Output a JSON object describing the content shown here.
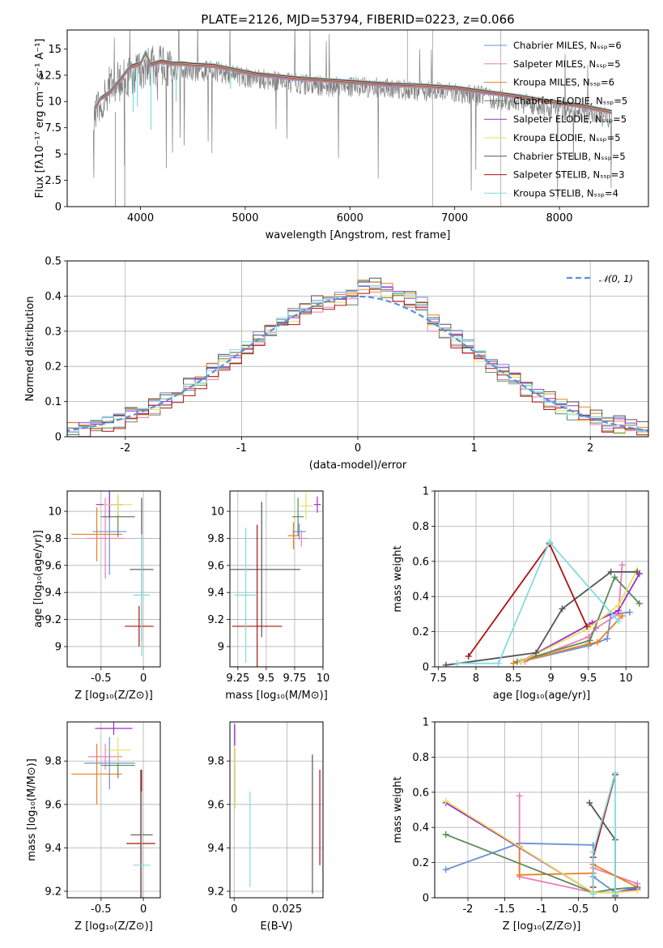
{
  "chart_data": [
    {
      "type": "line",
      "id": "spectrum",
      "title": "PLATE=2126, MJD=53794, FIBERID=0223, z=0.066",
      "xlabel": "wavelength [Angstrom, rest frame]",
      "ylabel": "Flux [fλ10⁻¹⁷ erg cm⁻² s⁻¹ A⁻¹]",
      "xlim": [
        3300,
        8850
      ],
      "ylim": [
        0,
        16.8
      ],
      "xticks": [
        4000,
        5000,
        6000,
        7000,
        8000
      ],
      "yticks": [
        0.0,
        2.5,
        5.0,
        7.5,
        10.0,
        12.5,
        15.0
      ],
      "grid": false,
      "legend_position": "right",
      "data_color": "#808080",
      "data_envelope": {
        "x": [
          3580,
          3700,
          3800,
          3900,
          4000,
          4100,
          4200,
          4300,
          4500,
          4700,
          4900,
          5100,
          5300,
          5500,
          5800,
          6100,
          6400,
          6700,
          7000,
          7300,
          7600,
          7900,
          8200,
          8500
        ],
        "y": [
          9.5,
          12.0,
          12.5,
          13.0,
          13.5,
          14.0,
          14.0,
          13.5,
          13.5,
          13.5,
          13.0,
          12.8,
          12.5,
          12.3,
          12.0,
          12.0,
          11.8,
          11.6,
          11.5,
          11.0,
          10.5,
          10.0,
          9.5,
          9.0
        ]
      },
      "model_color": "#80dce0",
      "model": {
        "x": [
          3560,
          3620,
          3700,
          3800,
          3900,
          4000,
          4050,
          4100,
          4200,
          4300,
          4400,
          4500,
          4700,
          4900,
          5100,
          5300,
          5500,
          5800,
          6100,
          6400,
          6700,
          7000,
          7300,
          7600,
          7900,
          8200,
          8500
        ],
        "y": [
          9.3,
          10.3,
          10.8,
          12.0,
          13.3,
          13.6,
          14.7,
          13.5,
          13.8,
          13.6,
          13.6,
          13.5,
          13.4,
          13.0,
          12.6,
          12.4,
          12.2,
          12.0,
          11.8,
          11.6,
          11.5,
          11.3,
          10.9,
          10.5,
          10.0,
          9.6,
          9.0
        ]
      },
      "legend": [
        {
          "label": "Chabrier MILES, Nₛₛₚ=6",
          "color": "#6b8fd6"
        },
        {
          "label": "Salpeter MILES, Nₛₛₚ=5",
          "color": "#e87fb8"
        },
        {
          "label": "Kroupa MILES, Nₛₛₚ=6",
          "color": "#e8801f"
        },
        {
          "label": "Chabrier ELODIE, Nₛₛₚ=5",
          "color": "#5a8a5a"
        },
        {
          "label": "Salpeter ELODIE, Nₛₛₚ=5",
          "color": "#9b30c8"
        },
        {
          "label": "Kroupa ELODIE, Nₛₛₚ=5",
          "color": "#e8e060"
        },
        {
          "label": "Chabrier STELIB, Nₛₛₚ=5",
          "color": "#555555"
        },
        {
          "label": "Salpeter STELIB, Nₛₛₚ=3",
          "color": "#b01010"
        },
        {
          "label": "Kroupa STELIB, Nₛₛₚ=4",
          "color": "#80dce0"
        }
      ]
    },
    {
      "type": "line",
      "id": "residuals",
      "xlabel": "(data-model)/error",
      "ylabel": "Normed distribution",
      "xlim": [
        -2.5,
        2.5
      ],
      "ylim": [
        0,
        0.5
      ],
      "xticks": [
        -2,
        -1,
        0,
        1,
        2
      ],
      "yticks": [
        0.0,
        0.1,
        0.2,
        0.3,
        0.4,
        0.5
      ],
      "grid": true,
      "legend_position": "top-right",
      "gaussian": {
        "label": "𝒩(0, 1)",
        "color": "#5b8fd9",
        "mean": 0,
        "sigma": 1
      },
      "bin_width": 0.1,
      "bins_from": -2.5,
      "histograms": [
        {
          "color": "#6b8fd6",
          "offset": 0.01
        },
        {
          "color": "#e87fb8",
          "offset": -0.008
        },
        {
          "color": "#e8801f",
          "offset": 0.012
        },
        {
          "color": "#5a8a5a",
          "offset": -0.01
        },
        {
          "color": "#9b30c8",
          "offset": 0.006
        },
        {
          "color": "#e8e060",
          "offset": -0.005
        },
        {
          "color": "#555555",
          "offset": 0.014
        },
        {
          "color": "#b01010",
          "offset": -0.012
        },
        {
          "color": "#80dce0",
          "offset": 0.004
        }
      ]
    },
    {
      "type": "scatter",
      "id": "age_vs_z",
      "xlabel": "Z [log₁₀(Z/Z⊙)]",
      "ylabel": "age  [log₁₀(age/yr)]",
      "xlim": [
        -0.9,
        0.2
      ],
      "ylim": [
        8.85,
        10.15
      ],
      "xticks": [
        -0.5,
        0.0
      ],
      "yticks": [
        9.0,
        9.2,
        9.4,
        9.6,
        9.8,
        10.0
      ],
      "grid": true,
      "points": [
        {
          "color": "#6b8fd6",
          "x": -0.4,
          "y": 9.85,
          "xerr": 0.2,
          "yerr": 0.32
        },
        {
          "color": "#e87fb8",
          "x": -0.45,
          "y": 9.8,
          "xerr": 0.22,
          "yerr": 0.3
        },
        {
          "color": "#e8801f",
          "x": -0.55,
          "y": 9.83,
          "xerr": 0.3,
          "yerr": 0.2
        },
        {
          "color": "#5a8a5a",
          "x": -0.3,
          "y": 9.96,
          "xerr": 0.2,
          "yerr": 0.15
        },
        {
          "color": "#9b30c8",
          "x": -0.4,
          "y": 10.05,
          "xerr": 0.16,
          "yerr": 0.1
        },
        {
          "color": "#e8e060",
          "x": -0.3,
          "y": 10.05,
          "xerr": 0.17,
          "yerr": 0.08
        },
        {
          "color": "#555555",
          "x": -0.02,
          "y": 9.57,
          "xerr": 0.14,
          "yerr": 0.53
        },
        {
          "color": "#b01010",
          "x": -0.05,
          "y": 9.15,
          "xerr": 0.17,
          "yerr": 0.15
        },
        {
          "color": "#80dce0",
          "x": -0.02,
          "y": 9.38,
          "xerr": 0.1,
          "yerr": 0.45
        }
      ]
    },
    {
      "type": "scatter",
      "id": "age_vs_mass",
      "xlabel": "mass [log₁₀(M/M⊙)]",
      "ylabel": "",
      "xlim": [
        9.18,
        10.0
      ],
      "ylim": [
        8.85,
        10.15
      ],
      "xticks": [
        9.25,
        9.5,
        9.75,
        10.0
      ],
      "yticks": [
        9.0,
        9.2,
        9.4,
        9.6,
        9.8,
        10.0
      ],
      "grid": true,
      "points": [
        {
          "color": "#6b8fd6",
          "x": 9.79,
          "y": 9.85,
          "xerr": 0.06,
          "yerr": 0.06
        },
        {
          "color": "#e87fb8",
          "x": 9.81,
          "y": 9.8,
          "xerr": 0.06,
          "yerr": 0.06
        },
        {
          "color": "#e8801f",
          "x": 9.74,
          "y": 9.82,
          "xerr": 0.05,
          "yerr": 0.1
        },
        {
          "color": "#5a8a5a",
          "x": 9.78,
          "y": 9.96,
          "xerr": 0.05,
          "yerr": 0.14
        },
        {
          "color": "#9b30c8",
          "x": 9.95,
          "y": 10.05,
          "xerr": 0.03,
          "yerr": 0.06
        },
        {
          "color": "#e8e060",
          "x": 9.85,
          "y": 10.04,
          "xerr": 0.06,
          "yerr": 0.1
        },
        {
          "color": "#555555",
          "x": 9.46,
          "y": 9.57,
          "xerr": 0.34,
          "yerr": 0.5
        },
        {
          "color": "#b01010",
          "x": 9.42,
          "y": 9.15,
          "xerr": 0.22,
          "yerr": 0.75
        },
        {
          "color": "#80dce0",
          "x": 9.32,
          "y": 9.38,
          "xerr": 0.1,
          "yerr": 0.5
        }
      ]
    },
    {
      "type": "line",
      "id": "weight_vs_age",
      "xlabel": "age  [log₁₀(age/yr)]",
      "ylabel": "mass weight",
      "xlim": [
        7.45,
        10.3
      ],
      "ylim": [
        0,
        1.0
      ],
      "xticks": [
        7.5,
        8.0,
        8.5,
        9.0,
        9.5,
        10.0
      ],
      "yticks": [
        0.0,
        0.2,
        0.4,
        0.6,
        0.8,
        1.0
      ],
      "grid": true,
      "series": [
        {
          "color": "#6b8fd6",
          "x": [
            8.6,
            9.5,
            9.75,
            9.8,
            10.05
          ],
          "y": [
            0.03,
            0.12,
            0.16,
            0.3,
            0.31
          ]
        },
        {
          "color": "#e87fb8",
          "x": [
            8.65,
            9.5,
            9.6,
            9.9,
            9.95
          ],
          "y": [
            0.03,
            0.17,
            0.22,
            0.3,
            0.58
          ]
        },
        {
          "color": "#e8801f",
          "x": [
            8.5,
            9.5,
            9.62,
            9.95
          ],
          "y": [
            0.02,
            0.13,
            0.14,
            0.29
          ]
        },
        {
          "color": "#5a8a5a",
          "x": [
            8.55,
            9.52,
            9.85,
            10.18
          ],
          "y": [
            0.03,
            0.15,
            0.51,
            0.36
          ]
        },
        {
          "color": "#9b30c8",
          "x": [
            8.6,
            9.55,
            9.9,
            10.18
          ],
          "y": [
            0.03,
            0.25,
            0.32,
            0.53
          ]
        },
        {
          "color": "#e8e060",
          "x": [
            8.6,
            9.5,
            9.9,
            10.15
          ],
          "y": [
            0.03,
            0.22,
            0.35,
            0.55
          ]
        },
        {
          "color": "#555555",
          "x": [
            7.6,
            8.8,
            9.15,
            9.8,
            10.15
          ],
          "y": [
            0.01,
            0.08,
            0.33,
            0.54,
            0.54
          ]
        },
        {
          "color": "#b01010",
          "x": [
            7.9,
            8.98,
            9.48
          ],
          "y": [
            0.06,
            0.7,
            0.23
          ]
        },
        {
          "color": "#80dce0",
          "x": [
            7.75,
            8.3,
            8.98,
            9.9
          ],
          "y": [
            0.02,
            0.02,
            0.71,
            0.26
          ]
        }
      ]
    },
    {
      "type": "scatter",
      "id": "mass_vs_z",
      "xlabel": "Z [log₁₀(Z/Z⊙)]",
      "ylabel": "mass [log₁₀(M/M⊙)]",
      "xlim": [
        -0.9,
        0.2
      ],
      "ylim": [
        9.17,
        9.98
      ],
      "xticks": [
        -0.5,
        0.0
      ],
      "yticks": [
        9.2,
        9.4,
        9.6,
        9.8
      ],
      "grid": true,
      "points": [
        {
          "color": "#6b8fd6",
          "x": -0.4,
          "y": 9.79,
          "xerr": 0.3,
          "yerr": 0.12
        },
        {
          "color": "#e87fb8",
          "x": -0.45,
          "y": 9.82,
          "xerr": 0.2,
          "yerr": 0.06
        },
        {
          "color": "#e8801f",
          "x": -0.55,
          "y": 9.74,
          "xerr": 0.3,
          "yerr": 0.14
        },
        {
          "color": "#5a8a5a",
          "x": -0.3,
          "y": 9.78,
          "xerr": 0.2,
          "yerr": 0.06
        },
        {
          "color": "#9b30c8",
          "x": -0.35,
          "y": 9.95,
          "xerr": 0.22,
          "yerr": 0.03
        },
        {
          "color": "#e8e060",
          "x": -0.3,
          "y": 9.85,
          "xerr": 0.15,
          "yerr": 0.06
        },
        {
          "color": "#555555",
          "x": -0.02,
          "y": 9.46,
          "xerr": 0.13,
          "yerr": 0.3
        },
        {
          "color": "#b01010",
          "x": -0.03,
          "y": 9.42,
          "xerr": 0.17,
          "yerr": 0.34
        },
        {
          "color": "#80dce0",
          "x": -0.02,
          "y": 9.32,
          "xerr": 0.1,
          "yerr": 0.34
        }
      ]
    },
    {
      "type": "scatter",
      "id": "mass_vs_ebv",
      "xlabel": "E(B-V)",
      "ylabel": "",
      "xlim": [
        -0.002,
        0.042
      ],
      "ylim": [
        9.17,
        9.98
      ],
      "xticks": [
        0.0,
        0.025
      ],
      "yticks": [
        9.2,
        9.4,
        9.6,
        9.8
      ],
      "grid": true,
      "points": [
        {
          "color": "#9b30c8",
          "x": 0.0003,
          "y": 9.92,
          "yerr": 0.05
        },
        {
          "color": "#e8e060",
          "x": 0.0005,
          "y": 9.72,
          "yerr": 0.14
        },
        {
          "color": "#80dce0",
          "x": 0.0075,
          "y": 9.44,
          "yerr": 0.22
        },
        {
          "color": "#555555",
          "x": 0.037,
          "y": 9.51,
          "yerr": 0.32
        },
        {
          "color": "#b01010",
          "x": 0.0405,
          "y": 9.54,
          "yerr": 0.22
        }
      ]
    },
    {
      "type": "line",
      "id": "weight_vs_z",
      "xlabel": "Z [log₁₀(Z/Z⊙)]",
      "ylabel": "mass weight",
      "xlim": [
        -2.45,
        0.45
      ],
      "ylim": [
        0,
        1.0
      ],
      "xticks": [
        -2.0,
        -1.5,
        -1.0,
        -0.5,
        0.0
      ],
      "yticks": [
        0.0,
        0.2,
        0.4,
        0.6,
        0.8,
        1.0
      ],
      "grid": true,
      "series": [
        {
          "color": "#6b8fd6",
          "x": [
            -2.3,
            -1.3,
            -0.3,
            -0.3,
            0.0,
            0.3
          ],
          "y": [
            0.16,
            0.31,
            0.3,
            0.12,
            0.03,
            0.06
          ]
        },
        {
          "color": "#e87fb8",
          "x": [
            -1.3,
            -1.3,
            -0.3,
            -0.3,
            0.3
          ],
          "y": [
            0.58,
            0.12,
            0.03,
            0.17,
            0.08
          ]
        },
        {
          "color": "#e8801f",
          "x": [
            -1.3,
            -1.3,
            -0.3,
            -0.3,
            0.3
          ],
          "y": [
            0.29,
            0.13,
            0.14,
            0.19,
            0.06
          ]
        },
        {
          "color": "#5a8a5a",
          "x": [
            -2.3,
            -0.3,
            0.0,
            0.3
          ],
          "y": [
            0.36,
            0.03,
            0.05,
            0.06
          ]
        },
        {
          "color": "#9b30c8",
          "x": [
            -2.3,
            -0.3,
            0.0,
            0.3
          ],
          "y": [
            0.54,
            0.03,
            0.03,
            0.05
          ]
        },
        {
          "color": "#e8e060",
          "x": [
            -2.3,
            -0.3,
            0.0,
            0.3
          ],
          "y": [
            0.55,
            0.03,
            0.03,
            0.04
          ]
        },
        {
          "color": "#555555",
          "x": [
            -0.35,
            0.0,
            0.0
          ],
          "y": [
            0.54,
            0.33,
            0.01
          ]
        },
        {
          "color": "#b01010",
          "x": [
            -0.3,
            -0.3,
            0.0
          ],
          "y": [
            0.06,
            0.23,
            0.7
          ]
        },
        {
          "color": "#80dce0",
          "x": [
            -0.3,
            -0.3,
            0.0,
            0.0
          ],
          "y": [
            0.02,
            0.26,
            0.71,
            0.02
          ]
        }
      ]
    }
  ]
}
